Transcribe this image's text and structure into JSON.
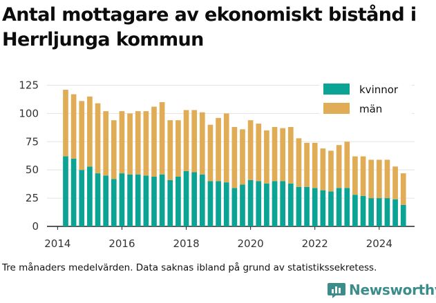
{
  "title": "Antal mottagare av ekonomiskt bistånd i Herrljunga kommun",
  "footnote": "Tre månaders medelvärden. Data saknas ibland på grund av statistikssekretess.",
  "brand": {
    "name": "Newsworthy",
    "icon": "bar-chart-logo-icon"
  },
  "colors": {
    "kvinnor": "#0aa394",
    "man": "#e0ad56",
    "grid": "#e3e3e3"
  },
  "chart_data": {
    "type": "bar",
    "stacked": true,
    "x_ticks": [
      "2014",
      "2016",
      "2018",
      "2020",
      "2022",
      "2024"
    ],
    "y_ticks": [
      "0",
      "25",
      "50",
      "75",
      "100",
      "125"
    ],
    "ylim": [
      0,
      132
    ],
    "xlim": [
      2013.67,
      2025.1
    ],
    "grid": true,
    "legend_position": "top-right",
    "x": [
      2014.25,
      2014.5,
      2014.75,
      2015.0,
      2015.25,
      2015.5,
      2015.75,
      2016.0,
      2016.25,
      2016.5,
      2016.75,
      2017.0,
      2017.25,
      2017.5,
      2017.75,
      2018.0,
      2018.25,
      2018.5,
      2018.75,
      2019.0,
      2019.25,
      2019.5,
      2019.75,
      2020.0,
      2020.25,
      2020.5,
      2020.75,
      2021.0,
      2021.25,
      2021.5,
      2021.75,
      2022.0,
      2022.25,
      2022.5,
      2022.75,
      2023.0,
      2023.25,
      2023.5,
      2023.75,
      2024.0,
      2024.25,
      2024.5,
      2024.75
    ],
    "series": [
      {
        "name": "kvinnor",
        "values": [
          62,
          60,
          50,
          53,
          47,
          45,
          42,
          47,
          46,
          46,
          45,
          44,
          46,
          41,
          44,
          49,
          48,
          46,
          40,
          40,
          39,
          34,
          37,
          41,
          40,
          38,
          40,
          40,
          38,
          35,
          35,
          34,
          32,
          31,
          34,
          34,
          28,
          27,
          25,
          25,
          25,
          24,
          19
        ]
      },
      {
        "name": "män",
        "values": [
          59,
          57,
          61,
          62,
          62,
          57,
          52,
          55,
          54,
          56,
          57,
          62,
          64,
          53,
          50,
          54,
          55,
          55,
          50,
          56,
          61,
          54,
          49,
          53,
          51,
          47,
          48,
          47,
          50,
          43,
          39,
          40,
          37,
          36,
          38,
          41,
          34,
          35,
          34,
          34,
          34,
          29,
          28
        ]
      }
    ]
  }
}
